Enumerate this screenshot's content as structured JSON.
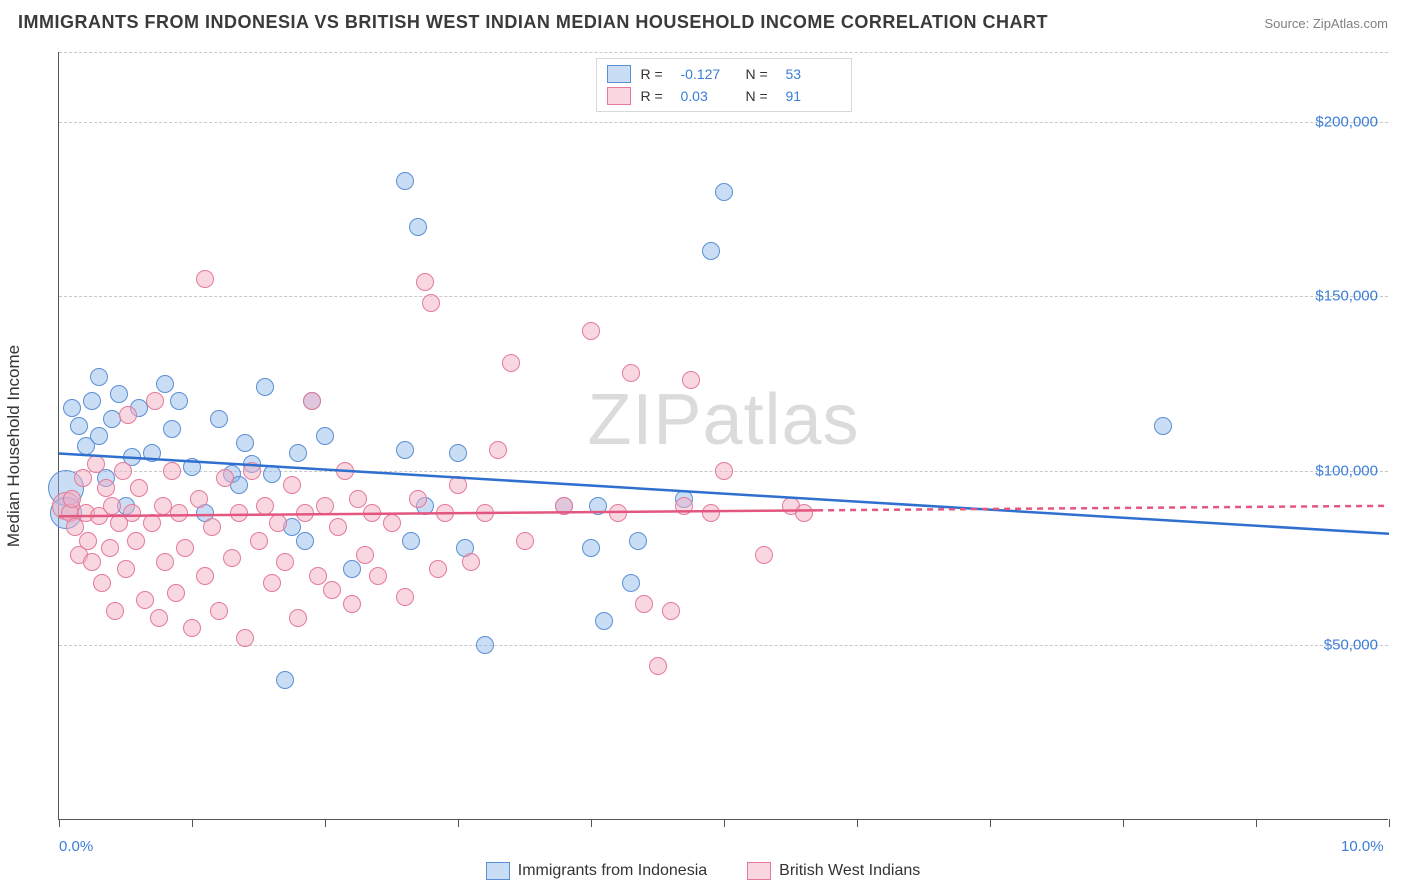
{
  "title": "IMMIGRANTS FROM INDONESIA VS BRITISH WEST INDIAN MEDIAN HOUSEHOLD INCOME CORRELATION CHART",
  "source": "Source: ZipAtlas.com",
  "watermark": {
    "bold": "ZIP",
    "light": "atlas"
  },
  "chart": {
    "type": "scatter",
    "background_color": "#ffffff",
    "grid_color": "#c8c8c8",
    "axis_color": "#555555",
    "xlim": [
      0,
      10
    ],
    "ylim": [
      0,
      220000
    ],
    "x_ticks": [
      0,
      1,
      2,
      3,
      4,
      5,
      6,
      7,
      8,
      9,
      10
    ],
    "x_tick_labels_shown": {
      "0": "0.0%",
      "10": "10.0%"
    },
    "y_gridlines": [
      50000,
      100000,
      150000,
      200000,
      220000
    ],
    "y_tick_labels": {
      "50000": "$50,000",
      "100000": "$100,000",
      "150000": "$150,000",
      "200000": "$200,000"
    },
    "y_axis_title": "Median Household Income",
    "label_color": "#3b7dd8",
    "axis_title_color": "#333333",
    "label_fontsize": 15,
    "title_fontsize": 18,
    "point_radius_default": 9,
    "point_radius_large": 16,
    "series": [
      {
        "id": "indonesia",
        "label": "Immigrants from Indonesia",
        "fill": "rgba(135,180,232,0.45)",
        "stroke": "#5b8fd6",
        "R": -0.127,
        "N": 53,
        "trend": {
          "y_at_x0": 105000,
          "y_at_x10": 82000,
          "solid_until_x": 10,
          "color": "#2e6fd0",
          "width": 2.5
        },
        "points": [
          {
            "x": 0.05,
            "y": 95000,
            "r": 18
          },
          {
            "x": 0.05,
            "y": 88000,
            "r": 16
          },
          {
            "x": 0.1,
            "y": 118000
          },
          {
            "x": 0.15,
            "y": 113000
          },
          {
            "x": 0.2,
            "y": 107000
          },
          {
            "x": 0.25,
            "y": 120000
          },
          {
            "x": 0.3,
            "y": 127000
          },
          {
            "x": 0.3,
            "y": 110000
          },
          {
            "x": 0.35,
            "y": 98000
          },
          {
            "x": 0.4,
            "y": 115000
          },
          {
            "x": 0.45,
            "y": 122000
          },
          {
            "x": 0.5,
            "y": 90000
          },
          {
            "x": 0.55,
            "y": 104000
          },
          {
            "x": 0.6,
            "y": 118000
          },
          {
            "x": 0.7,
            "y": 105000
          },
          {
            "x": 0.8,
            "y": 125000
          },
          {
            "x": 0.85,
            "y": 112000
          },
          {
            "x": 0.9,
            "y": 120000
          },
          {
            "x": 1.0,
            "y": 101000
          },
          {
            "x": 1.1,
            "y": 88000
          },
          {
            "x": 1.2,
            "y": 115000
          },
          {
            "x": 1.3,
            "y": 99000
          },
          {
            "x": 1.35,
            "y": 96000
          },
          {
            "x": 1.4,
            "y": 108000
          },
          {
            "x": 1.45,
            "y": 102000
          },
          {
            "x": 1.55,
            "y": 124000
          },
          {
            "x": 1.6,
            "y": 99000
          },
          {
            "x": 1.7,
            "y": 40000
          },
          {
            "x": 1.75,
            "y": 84000
          },
          {
            "x": 1.8,
            "y": 105000
          },
          {
            "x": 1.85,
            "y": 80000
          },
          {
            "x": 1.9,
            "y": 120000
          },
          {
            "x": 2.0,
            "y": 110000
          },
          {
            "x": 2.2,
            "y": 72000
          },
          {
            "x": 2.6,
            "y": 183000
          },
          {
            "x": 2.6,
            "y": 106000
          },
          {
            "x": 2.65,
            "y": 80000
          },
          {
            "x": 2.7,
            "y": 170000
          },
          {
            "x": 2.75,
            "y": 90000
          },
          {
            "x": 3.0,
            "y": 105000
          },
          {
            "x": 3.05,
            "y": 78000
          },
          {
            "x": 3.2,
            "y": 50000
          },
          {
            "x": 3.8,
            "y": 90000
          },
          {
            "x": 4.0,
            "y": 78000
          },
          {
            "x": 4.05,
            "y": 90000
          },
          {
            "x": 4.1,
            "y": 57000
          },
          {
            "x": 4.3,
            "y": 68000
          },
          {
            "x": 4.35,
            "y": 80000
          },
          {
            "x": 4.7,
            "y": 92000
          },
          {
            "x": 4.9,
            "y": 163000
          },
          {
            "x": 5.0,
            "y": 180000
          },
          {
            "x": 8.3,
            "y": 113000
          }
        ]
      },
      {
        "id": "bwi",
        "label": "British West Indians",
        "fill": "rgba(244,175,195,0.5)",
        "stroke": "#e47a9a",
        "R": 0.03,
        "N": 91,
        "trend": {
          "y_at_x0": 87000,
          "y_at_x10": 90000,
          "solid_until_x": 5.7,
          "color": "#e3567f",
          "width": 2.5
        },
        "points": [
          {
            "x": 0.05,
            "y": 90000,
            "r": 14
          },
          {
            "x": 0.08,
            "y": 88000
          },
          {
            "x": 0.1,
            "y": 92000
          },
          {
            "x": 0.12,
            "y": 84000
          },
          {
            "x": 0.15,
            "y": 76000
          },
          {
            "x": 0.18,
            "y": 98000
          },
          {
            "x": 0.2,
            "y": 88000
          },
          {
            "x": 0.22,
            "y": 80000
          },
          {
            "x": 0.25,
            "y": 74000
          },
          {
            "x": 0.28,
            "y": 102000
          },
          {
            "x": 0.3,
            "y": 87000
          },
          {
            "x": 0.32,
            "y": 68000
          },
          {
            "x": 0.35,
            "y": 95000
          },
          {
            "x": 0.38,
            "y": 78000
          },
          {
            "x": 0.4,
            "y": 90000
          },
          {
            "x": 0.42,
            "y": 60000
          },
          {
            "x": 0.45,
            "y": 85000
          },
          {
            "x": 0.48,
            "y": 100000
          },
          {
            "x": 0.5,
            "y": 72000
          },
          {
            "x": 0.52,
            "y": 116000
          },
          {
            "x": 0.55,
            "y": 88000
          },
          {
            "x": 0.58,
            "y": 80000
          },
          {
            "x": 0.6,
            "y": 95000
          },
          {
            "x": 0.65,
            "y": 63000
          },
          {
            "x": 0.7,
            "y": 85000
          },
          {
            "x": 0.72,
            "y": 120000
          },
          {
            "x": 0.75,
            "y": 58000
          },
          {
            "x": 0.78,
            "y": 90000
          },
          {
            "x": 0.8,
            "y": 74000
          },
          {
            "x": 0.85,
            "y": 100000
          },
          {
            "x": 0.88,
            "y": 65000
          },
          {
            "x": 0.9,
            "y": 88000
          },
          {
            "x": 0.95,
            "y": 78000
          },
          {
            "x": 1.0,
            "y": 55000
          },
          {
            "x": 1.05,
            "y": 92000
          },
          {
            "x": 1.1,
            "y": 70000
          },
          {
            "x": 1.1,
            "y": 155000
          },
          {
            "x": 1.15,
            "y": 84000
          },
          {
            "x": 1.2,
            "y": 60000
          },
          {
            "x": 1.25,
            "y": 98000
          },
          {
            "x": 1.3,
            "y": 75000
          },
          {
            "x": 1.35,
            "y": 88000
          },
          {
            "x": 1.4,
            "y": 52000
          },
          {
            "x": 1.45,
            "y": 100000
          },
          {
            "x": 1.5,
            "y": 80000
          },
          {
            "x": 1.55,
            "y": 90000
          },
          {
            "x": 1.6,
            "y": 68000
          },
          {
            "x": 1.65,
            "y": 85000
          },
          {
            "x": 1.7,
            "y": 74000
          },
          {
            "x": 1.75,
            "y": 96000
          },
          {
            "x": 1.8,
            "y": 58000
          },
          {
            "x": 1.85,
            "y": 88000
          },
          {
            "x": 1.9,
            "y": 120000
          },
          {
            "x": 1.95,
            "y": 70000
          },
          {
            "x": 2.0,
            "y": 90000
          },
          {
            "x": 2.05,
            "y": 66000
          },
          {
            "x": 2.1,
            "y": 84000
          },
          {
            "x": 2.15,
            "y": 100000
          },
          {
            "x": 2.2,
            "y": 62000
          },
          {
            "x": 2.25,
            "y": 92000
          },
          {
            "x": 2.3,
            "y": 76000
          },
          {
            "x": 2.35,
            "y": 88000
          },
          {
            "x": 2.4,
            "y": 70000
          },
          {
            "x": 2.5,
            "y": 85000
          },
          {
            "x": 2.6,
            "y": 64000
          },
          {
            "x": 2.7,
            "y": 92000
          },
          {
            "x": 2.75,
            "y": 154000
          },
          {
            "x": 2.8,
            "y": 148000
          },
          {
            "x": 2.85,
            "y": 72000
          },
          {
            "x": 2.9,
            "y": 88000
          },
          {
            "x": 3.0,
            "y": 96000
          },
          {
            "x": 3.1,
            "y": 74000
          },
          {
            "x": 3.2,
            "y": 88000
          },
          {
            "x": 3.3,
            "y": 106000
          },
          {
            "x": 3.4,
            "y": 131000
          },
          {
            "x": 3.5,
            "y": 80000
          },
          {
            "x": 3.8,
            "y": 90000
          },
          {
            "x": 4.0,
            "y": 140000
          },
          {
            "x": 4.2,
            "y": 88000
          },
          {
            "x": 4.3,
            "y": 128000
          },
          {
            "x": 4.4,
            "y": 62000
          },
          {
            "x": 4.5,
            "y": 44000
          },
          {
            "x": 4.6,
            "y": 60000
          },
          {
            "x": 4.7,
            "y": 90000
          },
          {
            "x": 4.75,
            "y": 126000
          },
          {
            "x": 4.9,
            "y": 88000
          },
          {
            "x": 5.0,
            "y": 100000
          },
          {
            "x": 5.3,
            "y": 76000
          },
          {
            "x": 5.5,
            "y": 90000
          },
          {
            "x": 5.6,
            "y": 88000
          }
        ]
      }
    ]
  },
  "legend_top": {
    "r_label": "R =",
    "n_label": "N ="
  }
}
